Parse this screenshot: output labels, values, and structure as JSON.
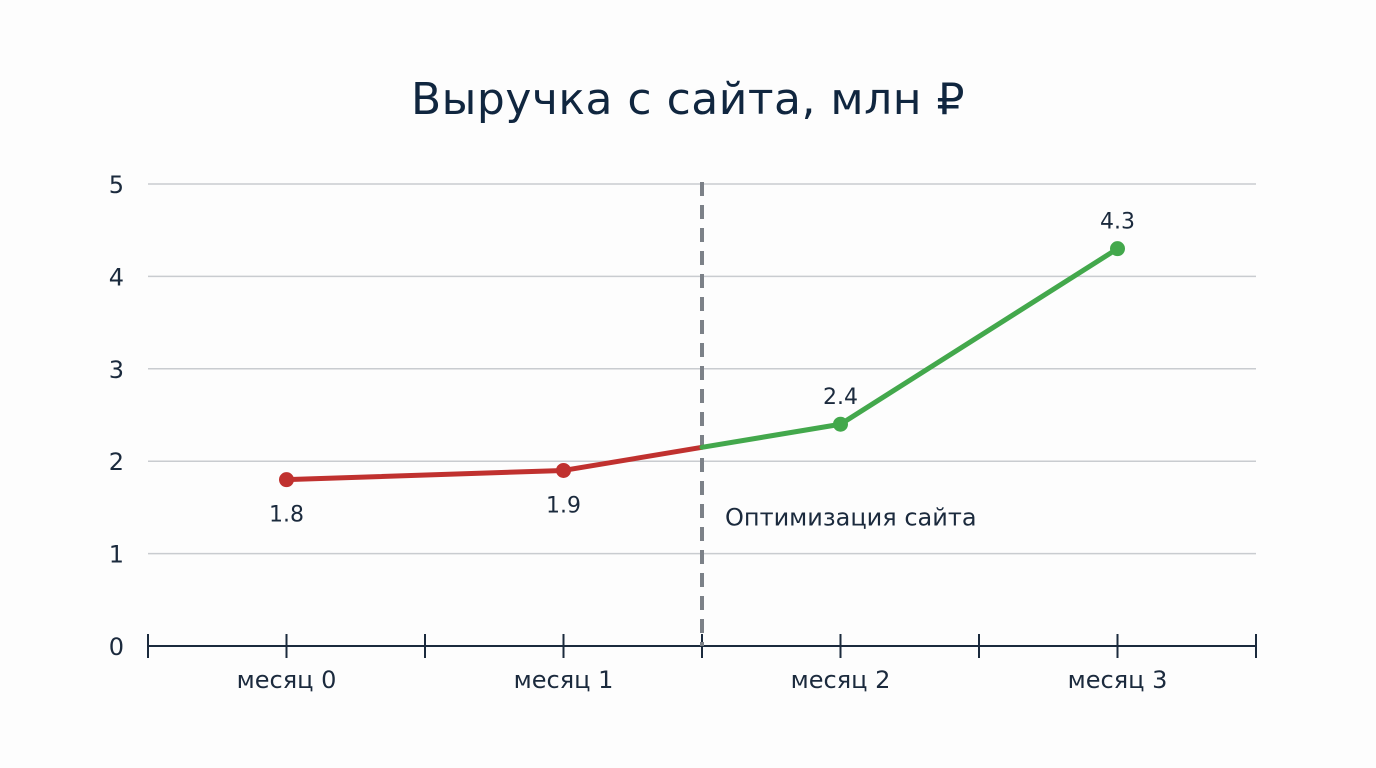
{
  "chart_data": {
    "type": "line",
    "title": "Выручка с сайта, млн ₽",
    "xlabel": "",
    "ylabel": "",
    "categories": [
      "месяц 0",
      "месяц 1",
      "месяц 2",
      "месяц 3"
    ],
    "series": [
      {
        "values": [
          1.8,
          1.9,
          2.4,
          4.3
        ]
      }
    ],
    "data_labels": [
      "1.8",
      "1.9",
      "2.4",
      "4.3"
    ],
    "ylim": [
      0,
      5
    ],
    "yticks": [
      0,
      1,
      2,
      3,
      4,
      5
    ],
    "grid": true,
    "legend": "none",
    "annotation": {
      "text": "Оптимизация сайта",
      "x": 1.5,
      "style": "dashed-vertical-line"
    },
    "colors": {
      "before": "#c0312f",
      "after": "#43a84c",
      "marker_line": "#7c8188",
      "grid": "#c9ccd0",
      "axis": "#1b2a3d",
      "title": "#10263f"
    }
  }
}
